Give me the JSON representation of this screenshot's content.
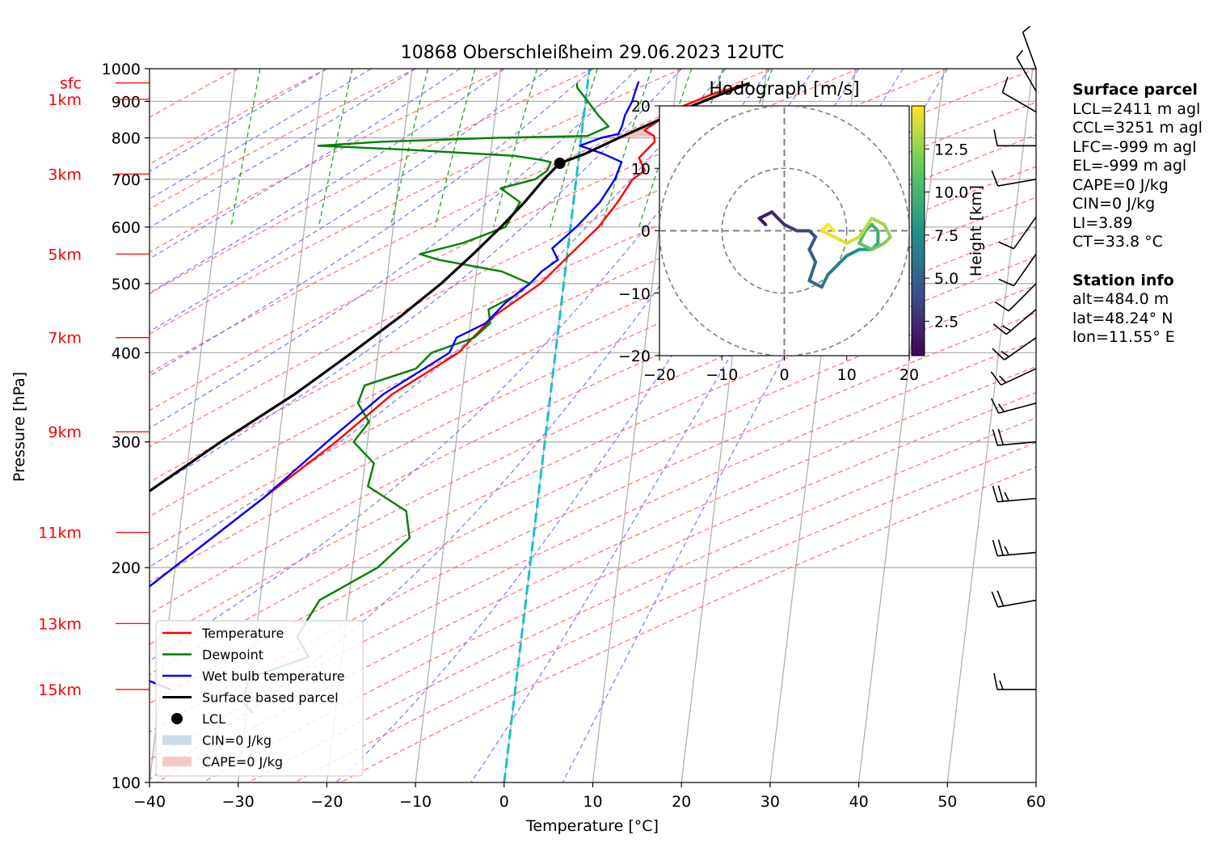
{
  "chart_data": {
    "type": "line",
    "title": "10868 Oberschleißheim 29.06.2023 12UTC",
    "xlabel": "Temperature [°C]",
    "ylabel": "Pressure [hPa]",
    "xlim": [
      -40,
      60
    ],
    "ylim": [
      1000,
      100
    ],
    "y_scale": "log",
    "x_ticks": [
      "−40",
      "−30",
      "−20",
      "−10",
      "0",
      "10",
      "20",
      "30",
      "40",
      "50",
      "60"
    ],
    "y_ticks": [
      "100",
      "200",
      "300",
      "400",
      "500",
      "600",
      "700",
      "800",
      "900",
      "1000"
    ],
    "height_labels": [
      {
        "label": "15km",
        "p": 135
      },
      {
        "label": "13km",
        "p": 167
      },
      {
        "label": "11km",
        "p": 224
      },
      {
        "label": "9km",
        "p": 310
      },
      {
        "label": "7km",
        "p": 420
      },
      {
        "label": "5km",
        "p": 550
      },
      {
        "label": "3km",
        "p": 712
      },
      {
        "label": "1km",
        "p": 906
      },
      {
        "label": "sfc",
        "p": 955
      }
    ],
    "legend": {
      "position": "lower-left",
      "entries": [
        "Temperature",
        "Dewpoint",
        "Wet bulb temperature",
        "Surface based parcel",
        "LCL",
        "CIN=0 J/kg",
        "CAPE=0 J/kg"
      ]
    },
    "series": [
      {
        "name": "Temperature",
        "color": "#ff0000",
        "points": [
          [
            955,
            27.5
          ],
          [
            920,
            23
          ],
          [
            880,
            19
          ],
          [
            850,
            17
          ],
          [
            820,
            15
          ],
          [
            805,
            16
          ],
          [
            790,
            16
          ],
          [
            770,
            15
          ],
          [
            750,
            14
          ],
          [
            720,
            14.5
          ],
          [
            700,
            13
          ],
          [
            650,
            11
          ],
          [
            600,
            8.5
          ],
          [
            550,
            5
          ],
          [
            500,
            1.2
          ],
          [
            450,
            -4.5
          ],
          [
            400,
            -9
          ],
          [
            350,
            -17
          ],
          [
            300,
            -24
          ],
          [
            250,
            -33
          ],
          [
            200,
            -44
          ],
          [
            170,
            -52
          ],
          [
            150,
            -52
          ],
          [
            140,
            -49
          ],
          [
            135,
            -46
          ]
        ]
      },
      {
        "name": "Dewpoint",
        "color": "#008000",
        "points": [
          [
            955,
            8
          ],
          [
            940,
            8
          ],
          [
            920,
            8.5
          ],
          [
            880,
            9.5
          ],
          [
            860,
            10
          ],
          [
            830,
            11
          ],
          [
            805,
            8.5
          ],
          [
            800,
            -2
          ],
          [
            790,
            -15
          ],
          [
            780,
            -22
          ],
          [
            770,
            -12
          ],
          [
            755,
            0
          ],
          [
            745,
            3
          ],
          [
            740,
            4
          ],
          [
            720,
            3.5
          ],
          [
            700,
            2
          ],
          [
            680,
            -2
          ],
          [
            650,
            0
          ],
          [
            600,
            -2
          ],
          [
            570,
            -7
          ],
          [
            550,
            -12
          ],
          [
            540,
            -10
          ],
          [
            520,
            -3
          ],
          [
            500,
            0
          ],
          [
            480,
            -2
          ],
          [
            460,
            -5
          ],
          [
            440,
            -5
          ],
          [
            420,
            -7
          ],
          [
            400,
            -12
          ],
          [
            380,
            -14
          ],
          [
            360,
            -20
          ],
          [
            340,
            -21
          ],
          [
            320,
            -20
          ],
          [
            300,
            -22
          ],
          [
            280,
            -20
          ],
          [
            260,
            -21
          ],
          [
            240,
            -17
          ],
          [
            220,
            -17
          ],
          [
            200,
            -21
          ],
          [
            180,
            -28
          ],
          [
            160,
            -31
          ],
          [
            150,
            -30
          ],
          [
            140,
            -37
          ],
          [
            130,
            -38
          ],
          [
            125,
            -37
          ]
        ]
      },
      {
        "name": "Wet bulb temperature",
        "color": "#0000ff",
        "points": [
          [
            960,
            15
          ],
          [
            930,
            14.5
          ],
          [
            900,
            14
          ],
          [
            860,
            13
          ],
          [
            830,
            12.5
          ],
          [
            810,
            12
          ],
          [
            800,
            10
          ],
          [
            780,
            7.5
          ],
          [
            760,
            10
          ],
          [
            740,
            12
          ],
          [
            720,
            11.5
          ],
          [
            700,
            11
          ],
          [
            650,
            9
          ],
          [
            600,
            6
          ],
          [
            560,
            3
          ],
          [
            540,
            3.5
          ],
          [
            520,
            1.5
          ],
          [
            500,
            0
          ],
          [
            470,
            -3
          ],
          [
            440,
            -5.5
          ],
          [
            420,
            -9
          ],
          [
            400,
            -10
          ],
          [
            350,
            -18
          ],
          [
            300,
            -25
          ],
          [
            250,
            -33
          ],
          [
            200,
            -44
          ],
          [
            170,
            -52
          ],
          [
            150,
            -52
          ],
          [
            140,
            -49
          ],
          [
            135,
            -46
          ]
        ]
      },
      {
        "name": "Surface based parcel",
        "color": "#000000",
        "points": [
          [
            955,
            27.5
          ],
          [
            900,
            22
          ],
          [
            850,
            17
          ],
          [
            800,
            12
          ],
          [
            760,
            8
          ],
          [
            737,
            5
          ],
          [
            700,
            3
          ],
          [
            650,
            0.5
          ],
          [
            600,
            -2.5
          ],
          [
            550,
            -6
          ],
          [
            500,
            -10
          ],
          [
            450,
            -15
          ],
          [
            400,
            -21
          ],
          [
            350,
            -28
          ],
          [
            300,
            -37
          ],
          [
            250,
            -47
          ],
          [
            200,
            -59
          ],
          [
            170,
            -67
          ],
          [
            150,
            -73
          ],
          [
            134,
            -79
          ]
        ]
      }
    ],
    "lcl": {
      "p": 737,
      "t": 5
    },
    "cape_area": {
      "color": "#f4c0c0"
    },
    "hodograph": {
      "title": "Hodograph [m/s]",
      "xlim": [
        -20,
        20
      ],
      "ylim": [
        -20,
        20
      ],
      "ticks": [
        "−20",
        "−10",
        "0",
        "10",
        "20"
      ],
      "colorbar_label": "Height [km]",
      "colorbar_ticks": [
        "2.5",
        "5.0",
        "7.5",
        "10.0",
        "12.5"
      ],
      "points": [
        [
          -3,
          1,
          0.5
        ],
        [
          -4,
          2,
          0.8
        ],
        [
          -2,
          3,
          1.2
        ],
        [
          -1,
          2,
          1.6
        ],
        [
          0,
          1,
          2
        ],
        [
          2,
          0,
          2.5
        ],
        [
          4,
          0,
          3
        ],
        [
          5,
          -1,
          3.5
        ],
        [
          4,
          -3,
          4
        ],
        [
          5,
          -5,
          4.5
        ],
        [
          4,
          -8,
          5
        ],
        [
          6,
          -9,
          5.5
        ],
        [
          7,
          -7,
          6
        ],
        [
          9,
          -5,
          6.5
        ],
        [
          10,
          -4,
          7
        ],
        [
          12,
          -3,
          7.5
        ],
        [
          14,
          -3,
          8
        ],
        [
          15,
          -2,
          8.5
        ],
        [
          15,
          0,
          9
        ],
        [
          14,
          1,
          9.5
        ],
        [
          13,
          0,
          10
        ],
        [
          12,
          -2,
          10.5
        ],
        [
          14,
          -3,
          11
        ],
        [
          16,
          -2,
          11.5
        ],
        [
          17,
          -1,
          12
        ],
        [
          16,
          1,
          12.5
        ],
        [
          14,
          2,
          13
        ],
        [
          12,
          -1,
          13.5
        ],
        [
          10,
          -2,
          14
        ],
        [
          8,
          -1,
          14.3
        ],
        [
          6,
          0,
          14.6
        ],
        [
          7,
          1,
          14.8
        ],
        [
          8,
          0,
          15
        ]
      ]
    },
    "wind_barbs": [
      {
        "p": 135,
        "speed": 15,
        "dir": 270
      },
      {
        "p": 180,
        "speed": 20,
        "dir": 260
      },
      {
        "p": 210,
        "speed": 25,
        "dir": 265
      },
      {
        "p": 250,
        "speed": 25,
        "dir": 265
      },
      {
        "p": 300,
        "speed": 20,
        "dir": 265
      },
      {
        "p": 340,
        "speed": 15,
        "dir": 255
      },
      {
        "p": 380,
        "speed": 15,
        "dir": 245
      },
      {
        "p": 420,
        "speed": 15,
        "dir": 235
      },
      {
        "p": 460,
        "speed": 15,
        "dir": 230
      },
      {
        "p": 500,
        "speed": 10,
        "dir": 225
      },
      {
        "p": 550,
        "speed": 10,
        "dir": 215
      },
      {
        "p": 620,
        "speed": 10,
        "dir": 215
      },
      {
        "p": 700,
        "speed": 10,
        "dir": 260
      },
      {
        "p": 780,
        "speed": 10,
        "dir": 270
      },
      {
        "p": 870,
        "speed": 10,
        "dir": 300
      },
      {
        "p": 930,
        "speed": 5,
        "dir": 330
      },
      {
        "p": 1000,
        "speed": 5,
        "dir": 340
      }
    ]
  },
  "info": {
    "surface_title": "Surface parcel",
    "surface_lines": [
      "LCL=2411 m agl",
      "CCL=3251 m agl",
      "LFC=-999 m agl",
      "EL=-999 m agl",
      "CAPE=0 J/kg",
      "CIN=0 J/kg",
      "LI=3.89",
      "CT=33.8 °C"
    ],
    "station_title": "Station info",
    "station_lines": [
      "alt=484.0 m",
      "lat=48.24° N",
      "lon=11.55° E"
    ]
  }
}
